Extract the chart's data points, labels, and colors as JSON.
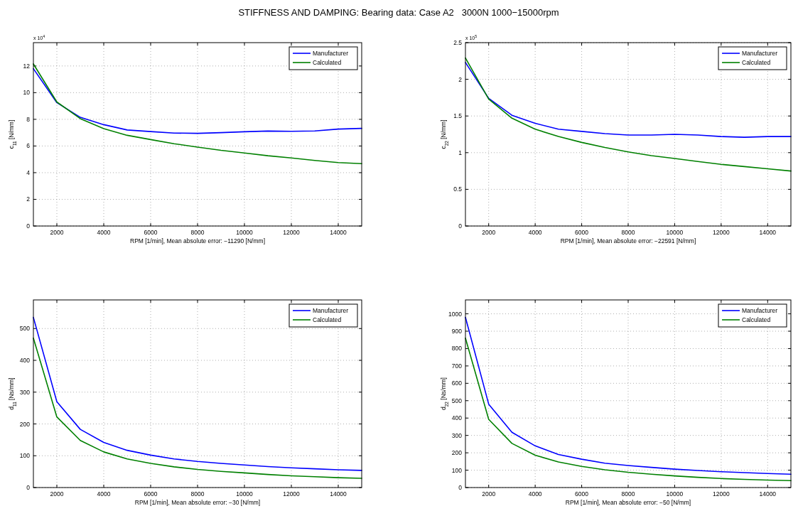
{
  "chart_data": [
    {
      "type": "line",
      "title": "STIFFNESS AND DAMPING: Bearing data: Case A2   3000N 1000−15000rpm",
      "xlabel": "RPM [1/min], Mean absolute error: −11290 [N/mm]",
      "ylabel": "c$_{11}$ [N/mm]",
      "annotations": [
        "x 10$^{4}$"
      ],
      "x": [
        1000,
        2000,
        3000,
        4000,
        5000,
        6000,
        7000,
        8000,
        9000,
        10000,
        11000,
        12000,
        13000,
        14000,
        15000
      ],
      "series": [
        {
          "name": "Manufacturer",
          "color": "#0000ff",
          "values": [
            11.8,
            9.25,
            8.15,
            7.6,
            7.2,
            7.08,
            6.97,
            6.95,
            7.0,
            7.07,
            7.12,
            7.1,
            7.13,
            7.27,
            7.32
          ]
        },
        {
          "name": "Calculated",
          "color": "#008000",
          "values": [
            12.15,
            9.3,
            8.05,
            7.3,
            6.8,
            6.48,
            6.17,
            5.92,
            5.68,
            5.48,
            5.27,
            5.1,
            4.92,
            4.76,
            4.68
          ]
        }
      ],
      "xlim": [
        1000,
        15000
      ],
      "xticks": [
        2000,
        4000,
        6000,
        8000,
        10000,
        12000,
        14000
      ],
      "ylim": [
        0,
        13.75
      ],
      "yticks": [
        0,
        2,
        4,
        6,
        8,
        10,
        12
      ],
      "grid": true,
      "legend": "top right"
    },
    {
      "type": "line",
      "xlabel": "RPM [1/min], Mean absolute error: −22591 [N/mm]",
      "ylabel": "c$_{22}$ [N/mm]",
      "annotations": [
        "x 10$^{5}$"
      ],
      "x": [
        1000,
        2000,
        3000,
        4000,
        5000,
        6000,
        7000,
        8000,
        9000,
        10000,
        11000,
        12000,
        13000,
        14000,
        15000
      ],
      "series": [
        {
          "name": "Manufacturer",
          "color": "#0000ff",
          "values": [
            2.23,
            1.74,
            1.51,
            1.4,
            1.32,
            1.29,
            1.26,
            1.24,
            1.24,
            1.25,
            1.24,
            1.22,
            1.21,
            1.22,
            1.22
          ]
        },
        {
          "name": "Calculated",
          "color": "#008000",
          "values": [
            2.29,
            1.73,
            1.47,
            1.32,
            1.22,
            1.14,
            1.07,
            1.01,
            0.96,
            0.92,
            0.88,
            0.84,
            0.81,
            0.78,
            0.75
          ]
        }
      ],
      "xlim": [
        1000,
        15000
      ],
      "xticks": [
        2000,
        4000,
        6000,
        8000,
        10000,
        12000,
        14000
      ],
      "ylim": [
        0,
        2.5
      ],
      "yticks": [
        0,
        0.5,
        1,
        1.5,
        2,
        2.5
      ],
      "grid": true,
      "legend": "top right"
    },
    {
      "type": "line",
      "xlabel": "RPM [1/min], Mean absolute error: −30 [N/mm]",
      "ylabel": "d$_{11}$ [Ns/mm]",
      "x": [
        1000,
        2000,
        3000,
        4000,
        5000,
        6000,
        7000,
        8000,
        9000,
        10000,
        11000,
        12000,
        13000,
        14000,
        15000
      ],
      "series": [
        {
          "name": "Manufacturer",
          "color": "#0000ff",
          "values": [
            535,
            270,
            183,
            142,
            117,
            102,
            90,
            82,
            76,
            71,
            66,
            62,
            59,
            56,
            54
          ]
        },
        {
          "name": "Calculated",
          "color": "#008000",
          "values": [
            470,
            222,
            148,
            112,
            90,
            76,
            65,
            57,
            51,
            46,
            41,
            37,
            34,
            31,
            29
          ]
        }
      ],
      "xlim": [
        1000,
        15000
      ],
      "xticks": [
        2000,
        4000,
        6000,
        8000,
        10000,
        12000,
        14000
      ],
      "ylim": [
        0,
        590
      ],
      "yticks": [
        0,
        100,
        200,
        300,
        400,
        500
      ],
      "grid": true,
      "legend": "top right"
    },
    {
      "type": "line",
      "xlabel": "RPM [1/min], Mean absolute error: −50 [N/mm]",
      "ylabel": "d$_{22}$ [Ns/mm]",
      "x": [
        1000,
        2000,
        3000,
        4000,
        5000,
        6000,
        7000,
        8000,
        9000,
        10000,
        11000,
        12000,
        13000,
        14000,
        15000
      ],
      "series": [
        {
          "name": "Manufacturer",
          "color": "#0000ff",
          "values": [
            980,
            480,
            318,
            240,
            190,
            163,
            140,
            127,
            116,
            106,
            98,
            91,
            86,
            81,
            77
          ]
        },
        {
          "name": "Calculated",
          "color": "#008000",
          "values": [
            860,
            393,
            254,
            186,
            147,
            122,
            102,
            88,
            77,
            67,
            59,
            52,
            47,
            43,
            40
          ]
        }
      ],
      "xlim": [
        1000,
        15000
      ],
      "xticks": [
        2000,
        4000,
        6000,
        8000,
        10000,
        12000,
        14000
      ],
      "ylim": [
        0,
        1080
      ],
      "yticks": [
        0,
        100,
        200,
        300,
        400,
        500,
        600,
        700,
        800,
        900,
        1000
      ],
      "grid": true,
      "legend": "top right"
    }
  ]
}
